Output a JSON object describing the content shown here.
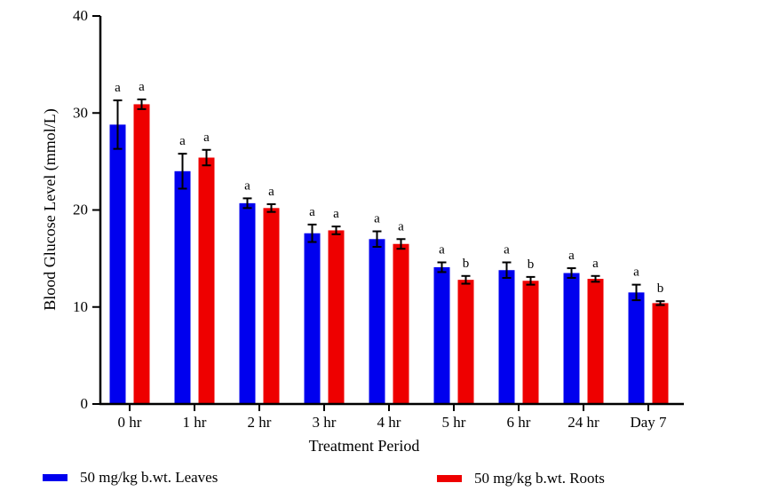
{
  "chart_data": {
    "type": "bar",
    "xlabel": "Treatment Period",
    "ylabel": "Blood Glucose Level (mmol/L)",
    "ylim": [
      0,
      40
    ],
    "yticks": [
      "0",
      "10",
      "20",
      "30",
      "40"
    ],
    "categories": [
      "0 hr",
      "1 hr",
      "2 hr",
      "3 hr",
      "4 hr",
      "5 hr",
      "6 hr",
      "24 hr",
      "Day 7"
    ],
    "series": [
      {
        "name": "50 mg/kg b.wt. Leaves",
        "color": "#0000ee",
        "values": [
          28.8,
          24.0,
          20.7,
          17.6,
          17.0,
          14.1,
          13.8,
          13.5,
          11.5
        ],
        "errors": [
          2.5,
          1.8,
          0.5,
          0.9,
          0.8,
          0.5,
          0.8,
          0.5,
          0.8
        ],
        "letters": [
          "a",
          "a",
          "a",
          "a",
          "a",
          "a",
          "a",
          "a",
          "a"
        ]
      },
      {
        "name": "50 mg/kg b.wt. Roots",
        "color": "#ee0000",
        "values": [
          30.9,
          25.4,
          20.2,
          17.9,
          16.5,
          12.8,
          12.7,
          12.9,
          10.4
        ],
        "errors": [
          0.5,
          0.8,
          0.4,
          0.4,
          0.5,
          0.4,
          0.4,
          0.3,
          0.2
        ],
        "letters": [
          "a",
          "a",
          "a",
          "a",
          "a",
          "b",
          "b",
          "a",
          "b"
        ]
      }
    ],
    "legend_position": "bottom"
  }
}
